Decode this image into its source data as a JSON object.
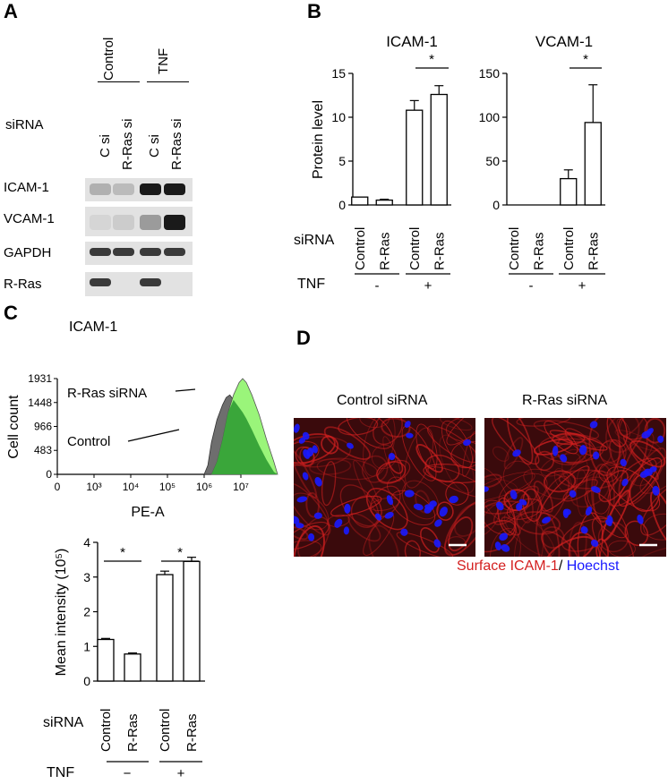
{
  "panels": {
    "A": "A",
    "B": "B",
    "C": "C",
    "D": "D"
  },
  "panelA": {
    "group_labels": [
      "Control",
      "TNF"
    ],
    "row_header": "siRNA",
    "lane_labels": [
      "C si",
      "R-Ras si",
      "C si",
      "R-Ras si"
    ],
    "blot_rows": [
      "ICAM-1",
      "VCAM-1",
      "GAPDH",
      "R-Ras"
    ],
    "band_intensity": [
      [
        0.25,
        0.2,
        0.95,
        0.95
      ],
      [
        0.08,
        0.12,
        0.35,
        0.95
      ],
      [
        0.8,
        0.8,
        0.8,
        0.8
      ],
      [
        0.8,
        0.0,
        0.8,
        0.0
      ]
    ]
  },
  "chart_data": [
    {
      "id": "B-ICAM",
      "type": "bar",
      "title": "ICAM-1",
      "ylabel": "Protein level",
      "ylim": [
        0,
        15
      ],
      "yticks": [
        0,
        5,
        10,
        15
      ],
      "categories": [
        "Control",
        "R-Ras",
        "Control",
        "R-Ras"
      ],
      "values": [
        0.9,
        0.55,
        10.8,
        12.6
      ],
      "errors": [
        0,
        0.1,
        1.1,
        1.0
      ],
      "significance": "*"
    },
    {
      "id": "B-VCAM",
      "type": "bar",
      "title": "VCAM-1",
      "ylabel": "",
      "ylim": [
        0,
        150
      ],
      "yticks": [
        0,
        50,
        100,
        150
      ],
      "categories": [
        "Control",
        "R-Ras",
        "Control",
        "R-Ras"
      ],
      "values": [
        0,
        0,
        30,
        94
      ],
      "errors": [
        0,
        0,
        10,
        43
      ],
      "significance": "*"
    },
    {
      "id": "C-hist",
      "type": "area",
      "title": "ICAM-1",
      "xlabel": "PE-A",
      "ylabel": "Cell count",
      "ylim": [
        0,
        1931
      ],
      "yticks": [
        0,
        483,
        966,
        1448,
        1931
      ],
      "xticks": [
        "0",
        "10³",
        "10⁴",
        "10⁵",
        "10⁶",
        "10⁷"
      ],
      "series": [
        {
          "name": "R-Ras siRNA",
          "color": "#9af57a"
        },
        {
          "name": "Control",
          "color": "#6e6e6e"
        }
      ],
      "overlap_color": "#3aa63a"
    },
    {
      "id": "C-bar",
      "type": "bar",
      "ylabel": "Mean intensity (10⁵)",
      "ylim": [
        0,
        4
      ],
      "yticks": [
        0,
        1,
        2,
        3,
        4
      ],
      "categories": [
        "Control",
        "R-Ras",
        "Control",
        "R-Ras"
      ],
      "values": [
        1.2,
        0.78,
        3.07,
        3.45
      ],
      "errors": [
        0.03,
        0.03,
        0.1,
        0.12
      ],
      "significance": [
        "*",
        "*"
      ]
    }
  ],
  "shared": {
    "sirna_label": "siRNA",
    "tnf_label": "TNF",
    "tnf_minus": "-",
    "tnf_plus": "+",
    "tnf_minus_c": "−",
    "tnf_plus_c": "+"
  },
  "panelD": {
    "images": [
      "Control siRNA",
      "R-Ras siRNA"
    ],
    "caption_red": "Surface ICAM-1",
    "caption_sep": "/ ",
    "caption_blue": "Hoechst",
    "red_color": "#d42020",
    "blue_color": "#1a1aff"
  }
}
